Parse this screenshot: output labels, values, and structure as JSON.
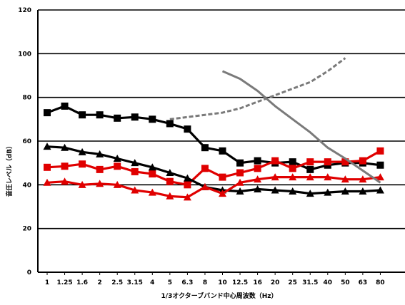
{
  "chart_data": {
    "type": "line",
    "title": "",
    "xlabel": "1/3オクターブバンド中心周波数（Hz）",
    "ylabel": "音圧レベル（dB）",
    "ylim": [
      0,
      120
    ],
    "yticks": [
      0,
      20,
      40,
      60,
      80,
      100,
      120
    ],
    "grid": "horizontal",
    "categories": [
      "1",
      "1.25",
      "1.6",
      "2",
      "2.5",
      "3.15",
      "4",
      "5",
      "6.3",
      "8",
      "10",
      "12.5",
      "16",
      "20",
      "25",
      "31.5",
      "40",
      "50",
      "63",
      "80"
    ],
    "series": [
      {
        "color": "#000000",
        "marker": "square",
        "line": "solid",
        "values": [
          73,
          76,
          72,
          72,
          70.5,
          71,
          70,
          68,
          65.5,
          57,
          55.5,
          50,
          51,
          50,
          50.5,
          47,
          49,
          50,
          50,
          49
        ]
      },
      {
        "color": "#e00000",
        "marker": "square",
        "line": "solid",
        "values": [
          48,
          48.5,
          49.5,
          47,
          48.5,
          46,
          45,
          41.5,
          40,
          47.5,
          43.5,
          45.5,
          47.5,
          51,
          47.5,
          50.5,
          50.5,
          50.5,
          51,
          55.5
        ]
      },
      {
        "color": "#000000",
        "marker": "triangle",
        "line": "solid",
        "values": [
          57.5,
          57,
          55,
          54,
          52,
          50,
          48,
          45.5,
          43,
          39,
          37.5,
          37,
          38,
          37.5,
          37,
          36,
          36.5,
          37,
          37,
          37.5
        ]
      },
      {
        "color": "#e00000",
        "marker": "triangle",
        "line": "solid",
        "values": [
          41,
          41.5,
          40,
          40.5,
          40,
          37.5,
          36.5,
          34.8,
          34.3,
          39,
          36,
          41,
          42.5,
          43.5,
          43.5,
          43.5,
          43.5,
          42.5,
          42.5,
          43.5
        ]
      },
      {
        "color": "#7a7a7a",
        "marker": "none",
        "line": "dashed",
        "values": [
          null,
          null,
          null,
          null,
          null,
          null,
          null,
          70,
          71,
          72,
          73,
          75,
          78,
          81,
          84,
          87,
          92,
          98,
          null,
          null
        ]
      },
      {
        "color": "#7a7a7a",
        "marker": "none",
        "line": "solid",
        "values": [
          null,
          null,
          null,
          null,
          null,
          null,
          null,
          null,
          null,
          null,
          92,
          88.5,
          83,
          76,
          70,
          64,
          57,
          52,
          46.5,
          41
        ]
      }
    ]
  }
}
